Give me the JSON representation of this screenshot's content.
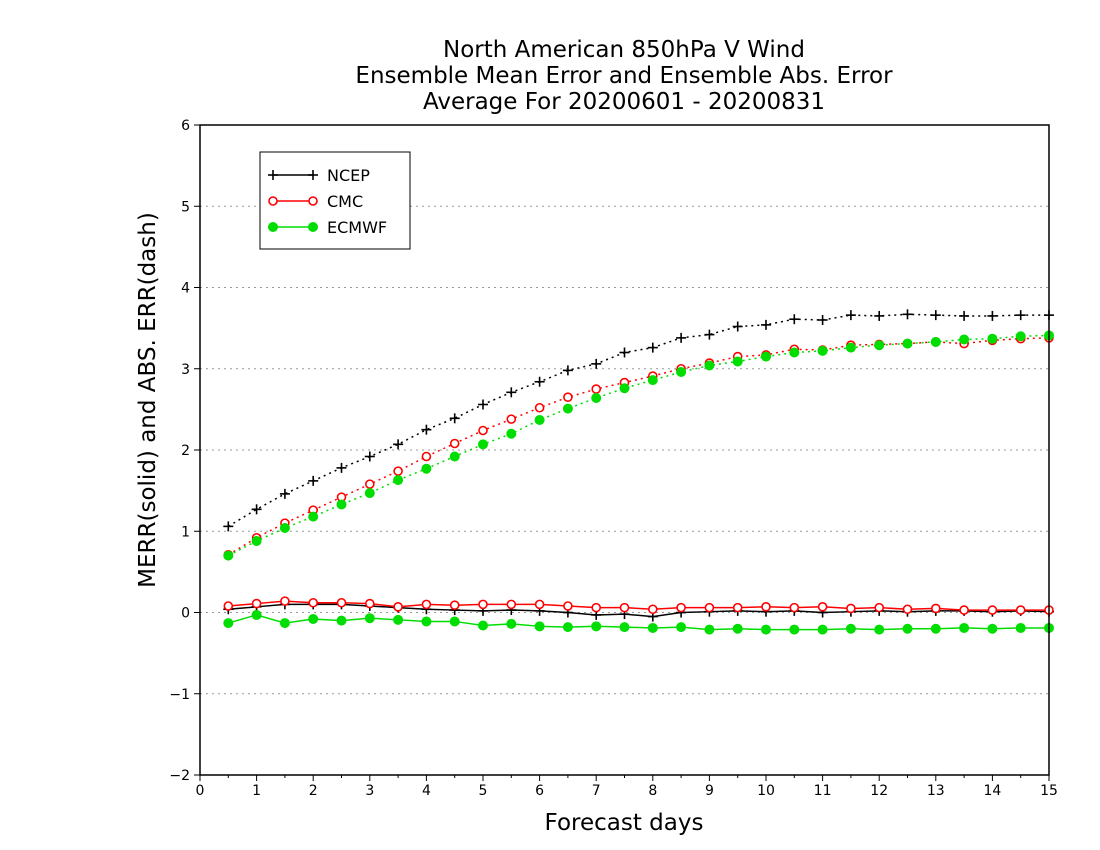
{
  "chart_data": {
    "type": "line",
    "title": [
      "North American 850hPa V Wind",
      "Ensemble Mean Error and Ensemble Abs. Error",
      "Average For 20200601 - 20200831"
    ],
    "xlabel": "Forecast days",
    "ylabel": "MERR(solid) and ABS. ERR(dash)",
    "xlim": [
      0,
      15
    ],
    "ylim": [
      -2,
      6
    ],
    "xticks": [
      0,
      1,
      2,
      3,
      4,
      5,
      6,
      7,
      8,
      9,
      10,
      11,
      12,
      13,
      14,
      15
    ],
    "yticks": [
      -2,
      -1,
      0,
      1,
      2,
      3,
      4,
      5,
      6
    ],
    "ytick_labels": [
      "−2",
      "−1",
      "0",
      "1",
      "2",
      "3",
      "4",
      "5",
      "6"
    ],
    "grid": "horizontal dotted",
    "legend_placement": "top-left",
    "x": [
      0.5,
      1,
      1.5,
      2,
      2.5,
      3,
      3.5,
      4,
      4.5,
      5,
      5.5,
      6,
      6.5,
      7,
      7.5,
      8,
      8.5,
      9,
      9.5,
      10,
      10.5,
      11,
      11.5,
      12,
      12.5,
      13,
      13.5,
      14,
      14.5,
      15
    ],
    "series": [
      {
        "name": "NCEP",
        "color": "#000000",
        "marker": "plus",
        "mean_error": [
          0.04,
          0.07,
          0.1,
          0.1,
          0.1,
          0.08,
          0.06,
          0.04,
          0.03,
          0.02,
          0.03,
          0.02,
          0.0,
          -0.03,
          -0.02,
          -0.05,
          0.0,
          0.01,
          0.02,
          0.01,
          0.02,
          0.0,
          0.01,
          0.02,
          0.01,
          0.02,
          0.02,
          0.01,
          0.02,
          0.01
        ],
        "abs_error": [
          1.06,
          1.27,
          1.46,
          1.62,
          1.78,
          1.92,
          2.07,
          2.25,
          2.39,
          2.56,
          2.71,
          2.84,
          2.98,
          3.06,
          3.2,
          3.26,
          3.38,
          3.42,
          3.52,
          3.54,
          3.61,
          3.6,
          3.66,
          3.65,
          3.67,
          3.66,
          3.65,
          3.65,
          3.66,
          3.66
        ]
      },
      {
        "name": "CMC",
        "color": "#ff0000",
        "marker": "open-circle",
        "mean_error": [
          0.08,
          0.11,
          0.14,
          0.12,
          0.12,
          0.11,
          0.07,
          0.1,
          0.09,
          0.1,
          0.1,
          0.1,
          0.08,
          0.06,
          0.06,
          0.04,
          0.06,
          0.06,
          0.06,
          0.07,
          0.06,
          0.07,
          0.05,
          0.06,
          0.04,
          0.05,
          0.03,
          0.03,
          0.03,
          0.03
        ],
        "abs_error": [
          0.71,
          0.92,
          1.1,
          1.26,
          1.42,
          1.58,
          1.74,
          1.92,
          2.08,
          2.24,
          2.38,
          2.52,
          2.65,
          2.75,
          2.83,
          2.91,
          3.0,
          3.07,
          3.15,
          3.17,
          3.24,
          3.23,
          3.29,
          3.3,
          3.31,
          3.33,
          3.31,
          3.35,
          3.37,
          3.38
        ]
      },
      {
        "name": "ECMWF",
        "color": "#00dd00",
        "marker": "filled-circle",
        "mean_error": [
          -0.13,
          -0.03,
          -0.13,
          -0.08,
          -0.1,
          -0.07,
          -0.09,
          -0.11,
          -0.11,
          -0.16,
          -0.14,
          -0.17,
          -0.18,
          -0.17,
          -0.18,
          -0.19,
          -0.18,
          -0.21,
          -0.2,
          -0.21,
          -0.21,
          -0.21,
          -0.2,
          -0.21,
          -0.2,
          -0.2,
          -0.19,
          -0.2,
          -0.19,
          -0.19
        ],
        "abs_error": [
          0.7,
          0.88,
          1.04,
          1.18,
          1.33,
          1.47,
          1.63,
          1.77,
          1.92,
          2.07,
          2.2,
          2.37,
          2.51,
          2.64,
          2.76,
          2.86,
          2.96,
          3.04,
          3.09,
          3.15,
          3.2,
          3.22,
          3.26,
          3.29,
          3.31,
          3.33,
          3.36,
          3.37,
          3.4,
          3.41
        ]
      }
    ]
  }
}
